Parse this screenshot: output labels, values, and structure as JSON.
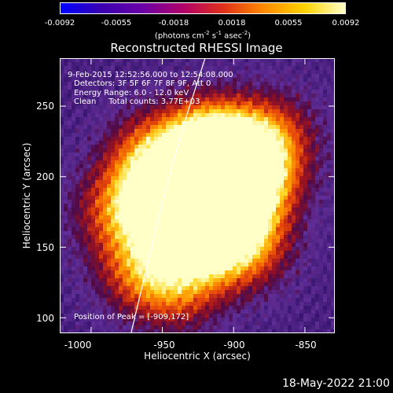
{
  "colorbar": {
    "ticks": [
      "-0.0092",
      "-0.0055",
      "-0.0018",
      "0.0018",
      "0.0055",
      "0.0092"
    ],
    "unit_text": "(photons cm",
    "unit_exp1": "-2",
    "unit_mid": " s",
    "unit_exp2": "-1",
    "unit_mid2": " asec",
    "unit_exp3": "-2",
    "unit_end": ")",
    "colors": [
      "#0000ff",
      "#3a00b0",
      "#6a00a8",
      "#b0006a",
      "#e0301a",
      "#ff8a00",
      "#ffd200",
      "#ffffc8"
    ]
  },
  "annotations": {
    "time": "9-Feb-2015 12:52:56.000 to 12:54:08.000",
    "detectors": "Detectors: 3F 5F 6F 7F 8F 9F, Att 0",
    "energy": "Energy Range: 6.0 - 12.0 keV",
    "clean": "Clean     Total counts: 3.77E+03",
    "peak": "Position of Peak = [-909,172]"
  },
  "footer": {
    "date": "18-May-2022 21:00"
  },
  "chart_data": {
    "type": "heatmap",
    "title": "Reconstructed RHESSI Image",
    "xlabel": "Heliocentric X (arcsec)",
    "ylabel": "Heliocentric Y (arcsec)",
    "xlim": [
      -1022,
      -829
    ],
    "ylim": [
      89,
      284
    ],
    "x_ticks": [
      -1000,
      -950,
      -900,
      -850
    ],
    "y_ticks": [
      100,
      150,
      200,
      250
    ],
    "x_tick_labels": [
      "-1000",
      "-950",
      "-900",
      "-850"
    ],
    "y_tick_labels": [
      "100",
      "150",
      "200",
      "250"
    ],
    "colorbar_range": [
      -0.0092,
      0.0092
    ],
    "peak_position": [
      -909,
      172
    ],
    "sources": [
      {
        "x": -909,
        "y": 172,
        "intensity": 1.0
      },
      {
        "x": -920,
        "y": 222,
        "intensity": 0.9
      },
      {
        "x": -895,
        "y": 215,
        "intensity": 0.8
      },
      {
        "x": -955,
        "y": 180,
        "intensity": 0.75
      },
      {
        "x": -935,
        "y": 195,
        "intensity": 0.7
      },
      {
        "x": -885,
        "y": 195,
        "intensity": 0.6
      },
      {
        "x": -925,
        "y": 150,
        "intensity": 0.55
      },
      {
        "x": -965,
        "y": 135,
        "intensity": 0.5
      },
      {
        "x": -890,
        "y": 150,
        "intensity": 0.45
      },
      {
        "x": -960,
        "y": 215,
        "intensity": 0.45
      },
      {
        "x": -940,
        "y": 120,
        "intensity": 0.4
      },
      {
        "x": -985,
        "y": 175,
        "intensity": 0.35
      },
      {
        "x": -870,
        "y": 230,
        "intensity": 0.35
      }
    ],
    "limb_points": [
      [
        -972,
        89
      ],
      [
        -960,
        140
      ],
      [
        -948,
        190
      ],
      [
        -934,
        240
      ],
      [
        -920,
        284
      ]
    ]
  }
}
